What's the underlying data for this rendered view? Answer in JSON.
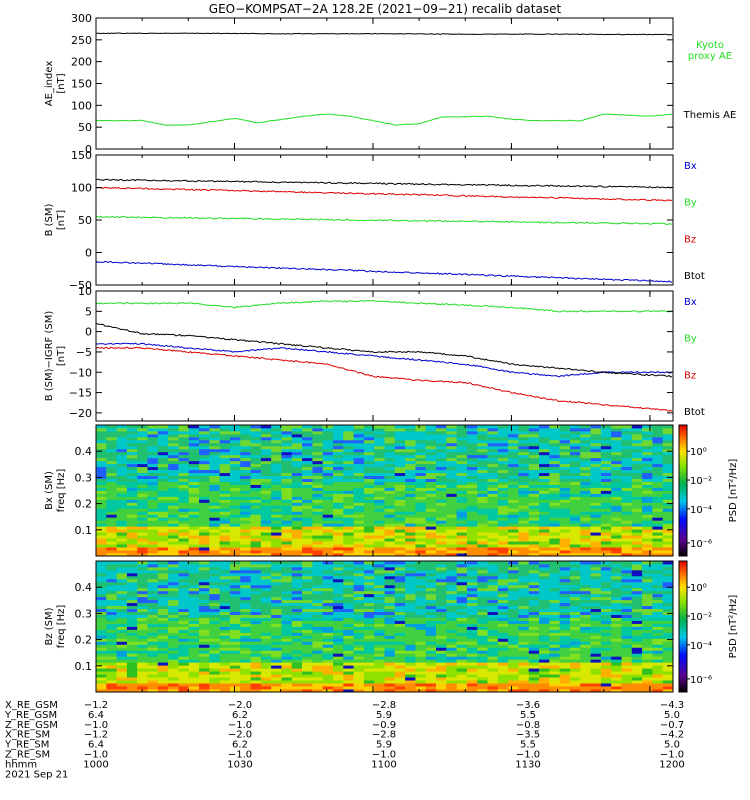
{
  "title": "GEO−KOMPSAT−2A 128.2E (2021−09−21) recalib dataset",
  "date_label": "2021 Sep 21",
  "time_axis": {
    "start": "1000",
    "end": "1205",
    "tick_labels": [
      "1000",
      "1030",
      "1100",
      "1130",
      "1200"
    ]
  },
  "ephemeris": {
    "labels": [
      "X_RE_GSM",
      "Y_RE_GSM",
      "Z_RE_GSM",
      "X_RE_SM",
      "Y_RE_SM",
      "Z_RE_SM",
      "hhmm"
    ],
    "rows": [
      [
        "-1.2",
        "-2.0",
        "-2.8",
        "-3.6",
        "-4.3"
      ],
      [
        "6.4",
        "6.2",
        "5.9",
        "5.5",
        "5.0"
      ],
      [
        "-1.0",
        "-1.0",
        "-0.9",
        "-0.8",
        "-0.7"
      ],
      [
        "-1.2",
        "-2.0",
        "-2.8",
        "-3.5",
        "-4.2"
      ],
      [
        "6.4",
        "6.2",
        "5.9",
        "5.5",
        "5.0"
      ],
      [
        "-1.0",
        "-1.0",
        "-1.0",
        "-1.0",
        "-1.0"
      ],
      [
        "1000",
        "1030",
        "1100",
        "1130",
        "1200"
      ]
    ]
  },
  "chart_data": [
    {
      "type": "line",
      "ylabel": [
        "AE_index",
        "[nT]"
      ],
      "ylim": [
        0,
        300
      ],
      "y_ticks": [
        "0",
        "50",
        "100",
        "150",
        "200",
        "250",
        "300"
      ],
      "series": [
        {
          "name": "Themis AE",
          "color": "#000000",
          "label_lines": [
            "Themis AE"
          ],
          "x": [
            "1000",
            "1020",
            "1040",
            "1100",
            "1120",
            "1140",
            "1205"
          ],
          "values": [
            265,
            265,
            264,
            264,
            263,
            263,
            262
          ]
        },
        {
          "name": "Kyoto proxy AE",
          "color": "#22dd22",
          "label_lines": [
            "Kyoto",
            "proxy AE"
          ],
          "x": [
            "1000",
            "1010",
            "1015",
            "1020",
            "1030",
            "1035",
            "1045",
            "1050",
            "1055",
            "1105",
            "1110",
            "1115",
            "1125",
            "1130",
            "1135",
            "1145",
            "1150",
            "1200",
            "1205"
          ],
          "values": [
            65,
            65,
            55,
            55,
            70,
            60,
            75,
            80,
            75,
            55,
            58,
            73,
            75,
            68,
            65,
            65,
            80,
            75,
            80
          ]
        }
      ]
    },
    {
      "type": "line",
      "ylabel": [
        "B (SM)",
        "[nT]"
      ],
      "ylim": [
        -50,
        150
      ],
      "y_ticks": [
        "−50",
        "0",
        "50",
        "100",
        "150"
      ],
      "series": [
        {
          "name": "Bx",
          "color": "#0000cc",
          "label_lines": [
            "Bx"
          ],
          "x": [
            "1000",
            "1205"
          ],
          "values": [
            -14,
            -45
          ]
        },
        {
          "name": "By",
          "color": "#22dd22",
          "label_lines": [
            "By"
          ],
          "x": [
            "1000",
            "1205"
          ],
          "values": [
            55,
            44
          ]
        },
        {
          "name": "Bz",
          "color": "#dd0000",
          "label_lines": [
            "Bz"
          ],
          "x": [
            "1000",
            "1205"
          ],
          "values": [
            100,
            80
          ]
        },
        {
          "name": "Btot",
          "color": "#000000",
          "label_lines": [
            "Btot"
          ],
          "x": [
            "1000",
            "1205"
          ],
          "values": [
            112,
            100
          ]
        }
      ]
    },
    {
      "type": "line",
      "ylabel": [
        "B (SM)−IGRF (SM)",
        "[nT]"
      ],
      "ylim": [
        -22,
        10
      ],
      "y_ticks": [
        "−20",
        "−15",
        "−10",
        "−5",
        "0",
        "5",
        "10"
      ],
      "series": [
        {
          "name": "Bx",
          "color": "#0000cc",
          "label_lines": [
            "Bx"
          ],
          "x": [
            "1000",
            "1010",
            "1020",
            "1030",
            "1040",
            "1050",
            "1100",
            "1110",
            "1120",
            "1130",
            "1140",
            "1150",
            "1205"
          ],
          "values": [
            -3,
            -3,
            -4,
            -5,
            -4,
            -5,
            -6,
            -7,
            -8,
            -10,
            -11,
            -10,
            -10
          ]
        },
        {
          "name": "By",
          "color": "#22dd22",
          "label_lines": [
            "By"
          ],
          "x": [
            "1000",
            "1010",
            "1020",
            "1030",
            "1040",
            "1050",
            "1100",
            "1110",
            "1120",
            "1130",
            "1140",
            "1150",
            "1205"
          ],
          "values": [
            7,
            7,
            7,
            6,
            7,
            7.5,
            7.5,
            7,
            6.5,
            6,
            5,
            5,
            5
          ]
        },
        {
          "name": "Bz",
          "color": "#dd0000",
          "label_lines": [
            "Bz"
          ],
          "x": [
            "1000",
            "1010",
            "1020",
            "1030",
            "1040",
            "1050",
            "1100",
            "1110",
            "1120",
            "1130",
            "1140",
            "1150",
            "1205"
          ],
          "values": [
            -4,
            -4,
            -5,
            -6,
            -7,
            -8,
            -11,
            -12,
            -12.5,
            -15,
            -17,
            -18,
            -19.5
          ]
        },
        {
          "name": "Btot",
          "color": "#000000",
          "label_lines": [
            "Btot"
          ],
          "x": [
            "1000",
            "1010",
            "1020",
            "1030",
            "1040",
            "1050",
            "1100",
            "1110",
            "1120",
            "1130",
            "1140",
            "1150",
            "1205"
          ],
          "values": [
            2,
            -0.5,
            -1,
            -2,
            -3,
            -4,
            -5,
            -5,
            -6,
            -8,
            -9,
            -10,
            -11
          ]
        }
      ]
    },
    {
      "type": "heatmap",
      "ylabel": [
        "Bx (SM)",
        "freq [Hz]"
      ],
      "ylim": [
        0,
        0.5
      ],
      "y_ticks": [
        "0.1",
        "0.2",
        "0.3",
        "0.4"
      ],
      "colorbar_label": "PSD [nT²/Hz]",
      "colorbar_ticks": [
        "10⁰",
        "10⁻²",
        "10⁻⁴",
        "10⁻⁶"
      ],
      "colorbar_range": "10⁻⁶ to 10¹ nT²/Hz (log)"
    },
    {
      "type": "heatmap",
      "ylabel": [
        "Bz (SM)",
        "freq [Hz]"
      ],
      "ylim": [
        0,
        0.5
      ],
      "y_ticks": [
        "0.1",
        "0.2",
        "0.3",
        "0.4"
      ],
      "colorbar_label": "PSD [nT²/Hz]",
      "colorbar_ticks": [
        "10⁰",
        "10⁻²",
        "10⁻⁴",
        "10⁻⁶"
      ],
      "colorbar_range": "10⁻⁶ to 10¹ nT²/Hz (log)"
    }
  ]
}
